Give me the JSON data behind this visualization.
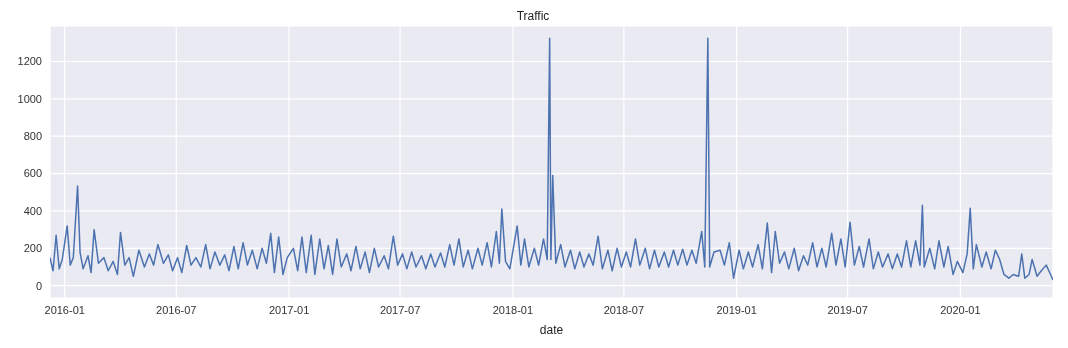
{
  "chart_data": {
    "type": "line",
    "title": "Traffic",
    "xlabel": "date",
    "x": [
      "2015-12-08",
      "2015-12-13",
      "2015-12-18",
      "2015-12-23",
      "2015-12-28",
      "2016-01-05",
      "2016-01-10",
      "2016-01-15",
      "2016-01-22",
      "2016-01-26",
      "2016-01-31",
      "2016-02-08",
      "2016-02-13",
      "2016-02-18",
      "2016-02-25",
      "2016-03-05",
      "2016-03-12",
      "2016-03-20",
      "2016-03-27",
      "2016-04-01",
      "2016-04-08",
      "2016-04-15",
      "2016-04-22",
      "2016-05-01",
      "2016-05-10",
      "2016-05-18",
      "2016-05-25",
      "2016-06-01",
      "2016-06-10",
      "2016-06-18",
      "2016-06-25",
      "2016-07-03",
      "2016-07-10",
      "2016-07-18",
      "2016-07-25",
      "2016-08-02",
      "2016-08-10",
      "2016-08-18",
      "2016-08-25",
      "2016-09-02",
      "2016-09-10",
      "2016-09-18",
      "2016-09-25",
      "2016-10-03",
      "2016-10-10",
      "2016-10-18",
      "2016-10-25",
      "2016-11-02",
      "2016-11-10",
      "2016-11-18",
      "2016-11-25",
      "2016-12-02",
      "2016-12-08",
      "2016-12-15",
      "2016-12-22",
      "2016-12-29",
      "2017-01-08",
      "2017-01-15",
      "2017-01-22",
      "2017-01-29",
      "2017-02-06",
      "2017-02-12",
      "2017-02-20",
      "2017-02-27",
      "2017-03-06",
      "2017-03-13",
      "2017-03-20",
      "2017-03-27",
      "2017-04-05",
      "2017-04-12",
      "2017-04-20",
      "2017-04-27",
      "2017-05-05",
      "2017-05-12",
      "2017-05-20",
      "2017-05-27",
      "2017-06-05",
      "2017-06-12",
      "2017-06-20",
      "2017-06-27",
      "2017-07-05",
      "2017-07-12",
      "2017-07-20",
      "2017-07-27",
      "2017-08-05",
      "2017-08-12",
      "2017-08-20",
      "2017-08-27",
      "2017-09-05",
      "2017-09-12",
      "2017-09-20",
      "2017-09-27",
      "2017-10-05",
      "2017-10-12",
      "2017-10-20",
      "2017-10-27",
      "2017-11-05",
      "2017-11-12",
      "2017-11-20",
      "2017-11-27",
      "2017-12-05",
      "2017-12-10",
      "2017-12-14",
      "2017-12-20",
      "2017-12-27",
      "2018-01-08",
      "2018-01-14",
      "2018-01-20",
      "2018-01-27",
      "2018-02-05",
      "2018-02-12",
      "2018-02-20",
      "2018-02-26",
      "2018-03-02",
      "2018-03-04",
      "2018-03-07",
      "2018-03-12",
      "2018-03-20",
      "2018-03-27",
      "2018-04-05",
      "2018-04-12",
      "2018-04-20",
      "2018-04-27",
      "2018-05-05",
      "2018-05-12",
      "2018-05-20",
      "2018-05-27",
      "2018-06-05",
      "2018-06-12",
      "2018-06-20",
      "2018-06-27",
      "2018-07-05",
      "2018-07-12",
      "2018-07-20",
      "2018-07-27",
      "2018-08-05",
      "2018-08-12",
      "2018-08-20",
      "2018-08-27",
      "2018-09-05",
      "2018-09-12",
      "2018-09-20",
      "2018-09-27",
      "2018-10-05",
      "2018-10-12",
      "2018-10-20",
      "2018-10-27",
      "2018-11-05",
      "2018-11-10",
      "2018-11-15",
      "2018-11-18",
      "2018-11-25",
      "2018-12-05",
      "2018-12-12",
      "2018-12-20",
      "2018-12-27",
      "2019-01-05",
      "2019-01-12",
      "2019-01-20",
      "2019-01-27",
      "2019-02-05",
      "2019-02-12",
      "2019-02-20",
      "2019-02-27",
      "2019-03-05",
      "2019-03-12",
      "2019-03-20",
      "2019-03-27",
      "2019-04-05",
      "2019-04-12",
      "2019-04-20",
      "2019-04-27",
      "2019-05-05",
      "2019-05-12",
      "2019-05-20",
      "2019-05-27",
      "2019-06-05",
      "2019-06-12",
      "2019-06-20",
      "2019-06-27",
      "2019-07-05",
      "2019-07-12",
      "2019-07-20",
      "2019-07-27",
      "2019-08-05",
      "2019-08-12",
      "2019-08-20",
      "2019-08-27",
      "2019-09-05",
      "2019-09-12",
      "2019-09-20",
      "2019-09-27",
      "2019-10-05",
      "2019-10-12",
      "2019-10-20",
      "2019-10-27",
      "2019-10-31",
      "2019-11-03",
      "2019-11-12",
      "2019-11-20",
      "2019-11-27",
      "2019-12-05",
      "2019-12-12",
      "2019-12-20",
      "2019-12-27",
      "2020-01-05",
      "2020-01-12",
      "2020-01-17",
      "2020-01-22",
      "2020-01-27",
      "2020-02-05",
      "2020-02-12",
      "2020-02-20",
      "2020-02-27",
      "2020-03-05",
      "2020-03-12",
      "2020-03-20",
      "2020-03-27",
      "2020-04-05",
      "2020-04-10",
      "2020-04-15",
      "2020-04-22",
      "2020-04-27",
      "2020-05-05",
      "2020-05-12",
      "2020-05-20",
      "2020-05-27",
      "2020-05-31"
    ],
    "values": [
      150,
      80,
      270,
      90,
      140,
      320,
      110,
      150,
      533,
      180,
      90,
      160,
      70,
      300,
      120,
      150,
      80,
      130,
      60,
      285,
      110,
      150,
      50,
      190,
      100,
      170,
      110,
      220,
      120,
      165,
      80,
      150,
      70,
      215,
      110,
      150,
      100,
      220,
      90,
      180,
      110,
      165,
      80,
      210,
      90,
      230,
      110,
      190,
      90,
      200,
      120,
      280,
      70,
      260,
      60,
      150,
      200,
      80,
      260,
      70,
      270,
      60,
      250,
      90,
      215,
      60,
      250,
      100,
      170,
      80,
      210,
      90,
      180,
      70,
      200,
      100,
      160,
      90,
      265,
      110,
      170,
      90,
      180,
      100,
      160,
      90,
      170,
      100,
      175,
      100,
      220,
      110,
      250,
      100,
      190,
      90,
      200,
      110,
      230,
      100,
      290,
      120,
      410,
      130,
      90,
      320,
      110,
      250,
      100,
      200,
      110,
      250,
      140,
      1325,
      140,
      590,
      120,
      220,
      100,
      190,
      90,
      180,
      100,
      170,
      110,
      265,
      90,
      190,
      80,
      200,
      100,
      180,
      100,
      250,
      110,
      200,
      90,
      190,
      100,
      180,
      100,
      190,
      110,
      195,
      110,
      190,
      120,
      290,
      100,
      1325,
      100,
      180,
      190,
      110,
      230,
      40,
      190,
      90,
      180,
      100,
      220,
      90,
      335,
      70,
      290,
      120,
      180,
      90,
      200,
      80,
      160,
      110,
      230,
      100,
      200,
      100,
      280,
      110,
      250,
      100,
      340,
      110,
      210,
      100,
      250,
      90,
      180,
      100,
      170,
      90,
      170,
      100,
      240,
      100,
      240,
      110,
      430,
      100,
      200,
      90,
      240,
      100,
      210,
      60,
      130,
      70,
      170,
      415,
      90,
      220,
      100,
      180,
      90,
      190,
      140,
      60,
      40,
      60,
      50,
      170,
      40,
      60,
      140,
      50,
      80,
      110,
      60,
      30
    ],
    "color": "#4c72b0",
    "xlim": [
      "2015-12-08",
      "2020-05-31"
    ],
    "xticks": [
      "2016-01",
      "2016-07",
      "2017-01",
      "2017-07",
      "2018-01",
      "2018-07",
      "2019-01",
      "2019-07",
      "2020-01"
    ],
    "ylim": [
      -66,
      1390
    ],
    "yticks": [
      0,
      200,
      400,
      600,
      800,
      1000,
      1200
    ],
    "grid": true
  }
}
